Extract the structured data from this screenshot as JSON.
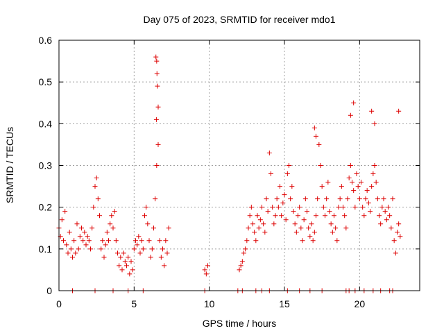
{
  "chart_data": {
    "type": "scatter",
    "title": "Day 075 of 2023, SRMTID for receiver mdo1",
    "xlabel": "GPS time / hours",
    "ylabel": "SRMTID / TECUs",
    "xlim": [
      0,
      24
    ],
    "ylim": [
      0,
      0.6
    ],
    "xticks": [
      0,
      5,
      10,
      15,
      20
    ],
    "xtick_labels": [
      "0",
      "5",
      "10",
      "15",
      "20"
    ],
    "yticks": [
      0,
      0.1,
      0.2,
      0.3,
      0.4,
      0.5,
      0.6
    ],
    "ytick_labels": [
      "0",
      "0.1",
      "0.2",
      "0.3",
      "0.4",
      "0.5",
      "0.6"
    ],
    "grid": true,
    "marker": "+",
    "series": [
      {
        "name": "SRMTID",
        "color": "#dd0000",
        "x": [
          0.0,
          0.1,
          0.2,
          0.3,
          0.4,
          0.5,
          0.6,
          0.7,
          0.8,
          0.9,
          1.0,
          1.1,
          1.2,
          1.3,
          1.4,
          1.5,
          1.6,
          1.7,
          1.8,
          1.9,
          2.0,
          2.1,
          2.2,
          2.3,
          2.4,
          2.5,
          2.6,
          2.7,
          2.8,
          2.9,
          3.0,
          3.1,
          3.2,
          3.3,
          3.4,
          3.5,
          3.6,
          3.7,
          3.8,
          3.9,
          4.0,
          4.1,
          4.2,
          4.3,
          4.4,
          4.5,
          4.6,
          4.7,
          4.8,
          4.9,
          5.0,
          5.1,
          5.2,
          5.3,
          5.4,
          5.5,
          5.6,
          5.7,
          5.8,
          5.9,
          6.0,
          6.1,
          6.2,
          6.3,
          6.4,
          6.5,
          6.6,
          6.7,
          6.8,
          6.9,
          7.0,
          7.1,
          7.2,
          7.3,
          9.7,
          9.8,
          9.9,
          12.0,
          12.1,
          12.2,
          12.3,
          12.4,
          12.5,
          12.6,
          12.7,
          12.8,
          12.9,
          13.0,
          13.1,
          13.2,
          13.3,
          13.4,
          13.5,
          13.6,
          13.7,
          13.8,
          13.9,
          14.0,
          14.1,
          14.2,
          14.3,
          14.4,
          14.5,
          14.6,
          14.7,
          14.8,
          14.9,
          15.0,
          15.1,
          15.2,
          15.3,
          15.4,
          15.5,
          15.6,
          15.7,
          15.8,
          15.9,
          16.0,
          16.1,
          16.2,
          16.3,
          16.4,
          16.5,
          16.6,
          16.7,
          16.8,
          16.9,
          17.0,
          17.1,
          17.2,
          17.3,
          17.4,
          17.5,
          17.6,
          17.7,
          17.8,
          17.9,
          18.0,
          18.1,
          18.2,
          18.3,
          18.4,
          18.5,
          18.6,
          18.7,
          18.8,
          18.9,
          19.0,
          19.1,
          19.2,
          19.3,
          19.4,
          19.5,
          19.6,
          19.7,
          19.8,
          19.9,
          20.0,
          20.1,
          20.2,
          20.3,
          20.4,
          20.5,
          20.6,
          20.7,
          20.8,
          20.9,
          21.0,
          21.1,
          21.2,
          21.3,
          21.4,
          21.5,
          21.6,
          21.7,
          21.8,
          21.9,
          22.0,
          22.1,
          22.2,
          22.3,
          22.4,
          22.5,
          22.6,
          22.7,
          6.45,
          6.5,
          6.55,
          6.6,
          6.52,
          6.48,
          17.0,
          17.1,
          19.4,
          19.6,
          20.8,
          21.0,
          22.6,
          0.9,
          2.4,
          3.6,
          4.6,
          5.6,
          9.7,
          11.9,
          12.2,
          13.1,
          13.5,
          14.0,
          15.2,
          16.0,
          16.7,
          17.5,
          19.1,
          19.3,
          19.7,
          20.3,
          20.9,
          21.4,
          22.0,
          22.2
        ],
        "y": [
          0.15,
          0.13,
          0.17,
          0.12,
          0.19,
          0.11,
          0.09,
          0.14,
          0.1,
          0.08,
          0.12,
          0.09,
          0.16,
          0.1,
          0.13,
          0.15,
          0.12,
          0.14,
          0.11,
          0.13,
          0.12,
          0.1,
          0.15,
          0.2,
          0.25,
          0.27,
          0.22,
          0.18,
          0.1,
          0.12,
          0.08,
          0.11,
          0.14,
          0.12,
          0.16,
          0.18,
          0.15,
          0.19,
          0.12,
          0.09,
          0.06,
          0.08,
          0.05,
          0.09,
          0.07,
          0.06,
          0.08,
          0.04,
          0.07,
          0.05,
          0.1,
          0.12,
          0.11,
          0.13,
          0.09,
          0.12,
          0.1,
          0.18,
          0.2,
          0.16,
          0.12,
          0.08,
          0.1,
          0.15,
          0.22,
          0.3,
          0.35,
          0.12,
          0.08,
          0.1,
          0.06,
          0.12,
          0.09,
          0.15,
          0.05,
          0.04,
          0.06,
          0.05,
          0.06,
          0.07,
          0.09,
          0.1,
          0.12,
          0.15,
          0.18,
          0.2,
          0.16,
          0.14,
          0.12,
          0.18,
          0.15,
          0.17,
          0.2,
          0.16,
          0.14,
          0.22,
          0.19,
          0.33,
          0.28,
          0.2,
          0.16,
          0.18,
          0.22,
          0.2,
          0.25,
          0.18,
          0.21,
          0.23,
          0.17,
          0.28,
          0.3,
          0.22,
          0.25,
          0.19,
          0.16,
          0.14,
          0.18,
          0.2,
          0.15,
          0.12,
          0.17,
          0.22,
          0.19,
          0.15,
          0.13,
          0.16,
          0.12,
          0.14,
          0.18,
          0.22,
          0.35,
          0.3,
          0.25,
          0.2,
          0.18,
          0.22,
          0.26,
          0.19,
          0.16,
          0.14,
          0.18,
          0.15,
          0.12,
          0.2,
          0.22,
          0.25,
          0.2,
          0.18,
          0.15,
          0.22,
          0.27,
          0.3,
          0.26,
          0.24,
          0.2,
          0.28,
          0.25,
          0.22,
          0.26,
          0.2,
          0.18,
          0.22,
          0.24,
          0.21,
          0.19,
          0.25,
          0.28,
          0.3,
          0.26,
          0.22,
          0.18,
          0.16,
          0.2,
          0.22,
          0.19,
          0.17,
          0.2,
          0.18,
          0.15,
          0.22,
          0.12,
          0.09,
          0.14,
          0.16,
          0.13,
          0.56,
          0.55,
          0.49,
          0.44,
          0.52,
          0.41,
          0.39,
          0.37,
          0.42,
          0.45,
          0.43,
          0.4,
          0.43,
          0.0,
          0.0,
          0.0,
          0.0,
          0.0,
          0.0,
          0.0,
          0.0,
          0.0,
          0.0,
          0.0,
          0.0,
          0.0,
          0.0,
          0.0,
          0.0,
          0.0,
          0.0,
          0.0,
          0.0,
          0.0,
          0.0,
          0.0
        ]
      }
    ]
  }
}
